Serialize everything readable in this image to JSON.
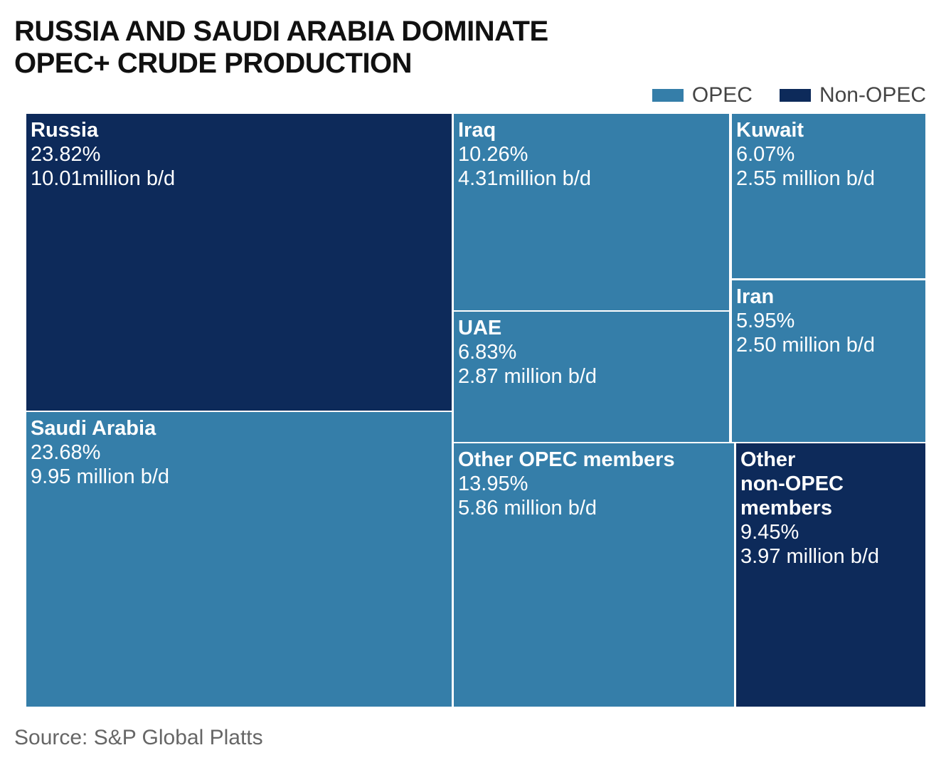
{
  "chart_data": {
    "type": "treemap",
    "title_lines": [
      "RUSSIA AND SAUDI ARABIA DOMINATE",
      "OPEC+ CRUDE PRODUCTION"
    ],
    "legend": [
      {
        "label": "OPEC",
        "color": "#357ea9"
      },
      {
        "label": "Non-OPEC",
        "color": "#0d2a5a"
      }
    ],
    "colors": {
      "OPEC": "#357ea9",
      "Non-OPEC": "#0d2a5a"
    },
    "tiles": [
      {
        "id": "russia",
        "name_lines": [
          "Russia"
        ],
        "group": "Non-OPEC",
        "share_pct": 23.82,
        "share_label": "23.82%",
        "volume": 10.01,
        "volume_label": "10.01million b/d"
      },
      {
        "id": "saudi-arabia",
        "name_lines": [
          "Saudi Arabia"
        ],
        "group": "OPEC",
        "share_pct": 23.68,
        "share_label": "23.68%",
        "volume": 9.95,
        "volume_label": "9.95 million b/d"
      },
      {
        "id": "iraq",
        "name_lines": [
          "Iraq"
        ],
        "group": "OPEC",
        "share_pct": 10.26,
        "share_label": "10.26%",
        "volume": 4.31,
        "volume_label": "4.31million b/d"
      },
      {
        "id": "uae",
        "name_lines": [
          "UAE"
        ],
        "group": "OPEC",
        "share_pct": 6.83,
        "share_label": "6.83%",
        "volume": 2.87,
        "volume_label": "2.87 million b/d"
      },
      {
        "id": "other-opec",
        "name_lines": [
          "Other OPEC members"
        ],
        "group": "OPEC",
        "share_pct": 13.95,
        "share_label": "13.95%",
        "volume": 5.86,
        "volume_label": "5.86 million b/d"
      },
      {
        "id": "kuwait",
        "name_lines": [
          "Kuwait"
        ],
        "group": "OPEC",
        "share_pct": 6.07,
        "share_label": "6.07%",
        "volume": 2.55,
        "volume_label": "2.55 million b/d"
      },
      {
        "id": "iran",
        "name_lines": [
          "Iran"
        ],
        "group": "OPEC",
        "share_pct": 5.95,
        "share_label": "5.95%",
        "volume": 2.5,
        "volume_label": "2.50 million b/d"
      },
      {
        "id": "other-non-opec",
        "name_lines": [
          "Other",
          "non-OPEC",
          "members"
        ],
        "group": "Non-OPEC",
        "share_pct": 9.45,
        "share_label": "9.45%",
        "volume": 3.97,
        "volume_label": "3.97 million b/d"
      }
    ],
    "source": "Source: S&P Global Platts"
  }
}
